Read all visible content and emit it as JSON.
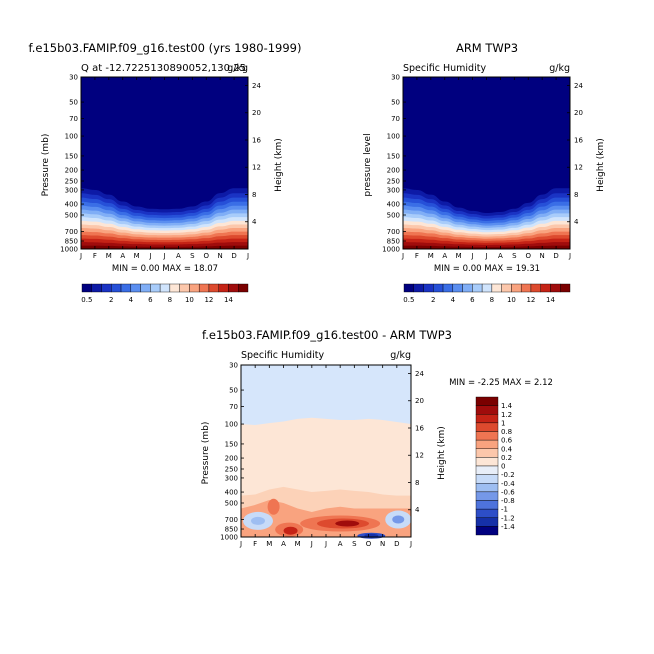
{
  "chart_data": [
    {
      "type": "heatmap",
      "title": "f.e15b03.FAMIP.f09_g16.test00 (yrs 1980-1999)",
      "subtitle_left": "Q at -12.7225130890052,130.25",
      "subtitle_right": "g/kg",
      "ylabel_left": "Pressure (mb)",
      "ylabel_right": "Height (km)",
      "x": [
        "J",
        "F",
        "M",
        "A",
        "M",
        "J",
        "J",
        "A",
        "S",
        "O",
        "N",
        "D",
        "J"
      ],
      "y_pressure": [
        "30",
        "50",
        "70",
        "100",
        "150",
        "200",
        "250",
        "300",
        "400",
        "500",
        "700",
        "850",
        "1000"
      ],
      "y_height": [
        "24",
        "20",
        "16",
        "12",
        "8",
        "4"
      ],
      "minmax": "MIN =    0.00 MAX =   18.07",
      "min": 0.0,
      "max": 18.07,
      "moisture_top_hPa": [
        290,
        300,
        330,
        380,
        420,
        440,
        445,
        440,
        420,
        380,
        320,
        290,
        290
      ],
      "colorbar": [
        "0.5",
        "2",
        "4",
        "6",
        "8",
        "10",
        "12",
        "14"
      ]
    },
    {
      "type": "heatmap",
      "title": "ARM TWP3",
      "subtitle_left": "Specific Humidity",
      "subtitle_right": "g/kg",
      "ylabel_left": "pressure level",
      "ylabel_right": "Height (km)",
      "x": [
        "J",
        "F",
        "M",
        "A",
        "M",
        "J",
        "J",
        "A",
        "S",
        "O",
        "N",
        "D",
        "J"
      ],
      "y_pressure": [
        "30",
        "50",
        "70",
        "100",
        "150",
        "200",
        "250",
        "300",
        "400",
        "500",
        "700",
        "850",
        "1000"
      ],
      "y_height": [
        "24",
        "20",
        "16",
        "12",
        "8",
        "4"
      ],
      "minmax": "MIN =    0.00 MAX =   19.31",
      "min": 0.0,
      "max": 19.31,
      "moisture_top_hPa": [
        290,
        300,
        330,
        380,
        430,
        460,
        480,
        470,
        440,
        390,
        330,
        290,
        290
      ],
      "colorbar": [
        "0.5",
        "2",
        "4",
        "6",
        "8",
        "10",
        "12",
        "14"
      ]
    },
    {
      "type": "heatmap",
      "title": "f.e15b03.FAMIP.f09_g16.test00 - ARM TWP3",
      "subtitle_left": "Specific Humidity",
      "subtitle_right": "g/kg",
      "ylabel_left": "Pressure (mb)",
      "ylabel_right": "Height (km)",
      "x": [
        "J",
        "F",
        "M",
        "A",
        "M",
        "J",
        "J",
        "A",
        "S",
        "O",
        "N",
        "D",
        "J"
      ],
      "y_pressure": [
        "30",
        "50",
        "70",
        "100",
        "150",
        "200",
        "250",
        "300",
        "400",
        "500",
        "700",
        "850",
        "1000"
      ],
      "y_height": [
        "24",
        "20",
        "16",
        "12",
        "8",
        "4"
      ],
      "minmax": "MIN =   -2.25 MAX =    2.12",
      "min": -2.25,
      "max": 2.12,
      "colorbar": [
        "1.4",
        "1.2",
        "1",
        "0.8",
        "0.6",
        "0.4",
        "0.2",
        "0",
        "-0.2",
        "-0.4",
        "-0.6",
        "-0.8",
        "-1",
        "-1.2",
        "-1.4"
      ]
    }
  ],
  "colors": {
    "abs_scale": [
      "#00007f",
      "#0d1aa6",
      "#1a33c4",
      "#2650d8",
      "#3a6ee6",
      "#5a8ef0",
      "#80aef6",
      "#a8ccfa",
      "#d0e4fc",
      "#fde6d6",
      "#fcc7ab",
      "#f9a37f",
      "#ef7552",
      "#dd4a2e",
      "#c52316",
      "#a00c0c",
      "#7a0000"
    ],
    "diff_scale": [
      "#7a0000",
      "#a00c0c",
      "#c52316",
      "#dd4a2e",
      "#ef7552",
      "#f9a37f",
      "#fcc7ab",
      "#fde6d6",
      "#e8eef8",
      "#c7dbf8",
      "#9ebef2",
      "#7598e8",
      "#4e73dc",
      "#2d4ec8",
      "#1530a8",
      "#00007f"
    ]
  }
}
